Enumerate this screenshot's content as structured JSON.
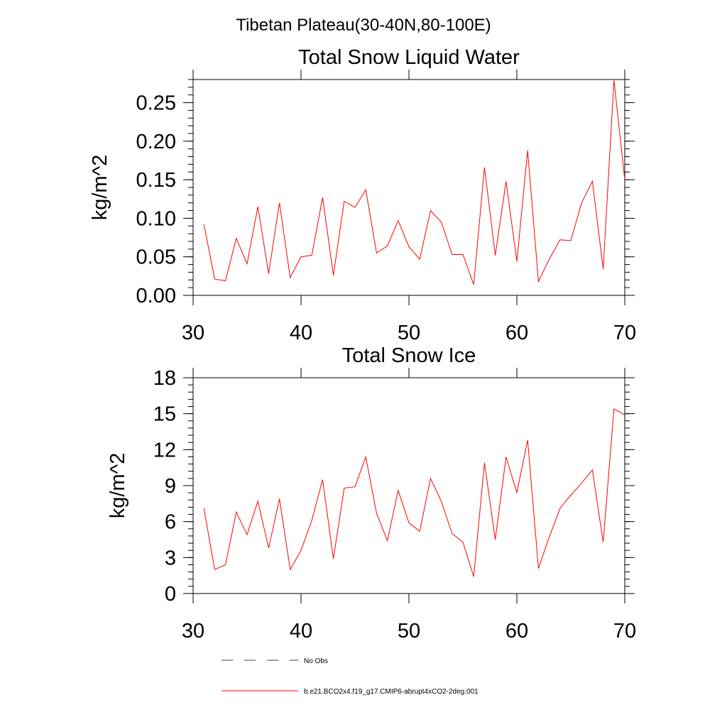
{
  "page_title": "Tibetan Plateau(30-40N,80-100E)",
  "colors": {
    "model_line": "#ff0000",
    "obs_line": "#3a3a7a",
    "axis": "#000000",
    "background": "#ffffff"
  },
  "chart_data": [
    {
      "type": "line",
      "title": "Total Snow Liquid Water",
      "xlabel": "",
      "ylabel": "kg/m^2",
      "xlim": [
        30,
        70
      ],
      "ylim": [
        0,
        0.28
      ],
      "x_ticks": [
        30,
        40,
        50,
        60,
        70
      ],
      "x_tick_labels": [
        "30",
        "40",
        "50",
        "60",
        "70"
      ],
      "y_ticks": [
        0,
        0.05,
        0.1,
        0.15,
        0.2,
        0.25
      ],
      "y_tick_labels": [
        "0.00",
        "0.05",
        "0.10",
        "0.15",
        "0.20",
        "0.25"
      ],
      "grid": false,
      "series": [
        {
          "name": "b.e21.BCO2x4.f19_g17.CMIP6-abrupt4xCO2-2deg.001",
          "color": "#ff0000",
          "x": [
            31,
            32,
            33,
            34,
            35,
            36,
            37,
            38,
            39,
            40,
            41,
            42,
            43,
            44,
            45,
            46,
            47,
            48,
            49,
            50,
            51,
            52,
            53,
            54,
            55,
            56,
            57,
            58,
            59,
            60,
            61,
            62,
            63,
            64,
            65,
            66,
            67,
            68,
            69,
            70
          ],
          "y": [
            0.092,
            0.021,
            0.019,
            0.074,
            0.041,
            0.115,
            0.028,
            0.12,
            0.023,
            0.05,
            0.052,
            0.127,
            0.026,
            0.122,
            0.114,
            0.137,
            0.055,
            0.064,
            0.097,
            0.063,
            0.047,
            0.11,
            0.095,
            0.053,
            0.053,
            0.014,
            0.166,
            0.052,
            0.148,
            0.044,
            0.188,
            0.018,
            0.047,
            0.072,
            0.071,
            0.12,
            0.148,
            0.034,
            0.279,
            0.15
          ]
        }
      ]
    },
    {
      "type": "line",
      "title": "Total Snow Ice",
      "xlabel": "",
      "ylabel": "kg/m^2",
      "xlim": [
        30,
        70
      ],
      "ylim": [
        0,
        18
      ],
      "x_ticks": [
        30,
        40,
        50,
        60,
        70
      ],
      "x_tick_labels": [
        "30",
        "40",
        "50",
        "60",
        "70"
      ],
      "y_ticks": [
        0,
        3,
        6,
        9,
        12,
        15,
        18
      ],
      "y_tick_labels": [
        "0",
        "3",
        "6",
        "9",
        "12",
        "15",
        "18"
      ],
      "grid": false,
      "series": [
        {
          "name": "b.e21.BCO2x4.f19_g17.CMIP6-abrupt4xCO2-2deg.001",
          "color": "#ff0000",
          "x": [
            31,
            32,
            33,
            34,
            35,
            36,
            37,
            38,
            39,
            40,
            41,
            42,
            43,
            44,
            45,
            46,
            47,
            48,
            49,
            50,
            51,
            52,
            53,
            54,
            55,
            56,
            57,
            58,
            59,
            60,
            61,
            62,
            63,
            64,
            65,
            66,
            67,
            68,
            69,
            70
          ],
          "y": [
            7.1,
            2.0,
            2.4,
            6.8,
            4.9,
            7.7,
            3.8,
            7.9,
            2.0,
            3.6,
            6.1,
            9.5,
            2.9,
            8.8,
            8.9,
            11.4,
            6.7,
            4.4,
            8.6,
            5.9,
            5.2,
            9.6,
            7.7,
            5.0,
            4.3,
            1.4,
            10.9,
            4.5,
            11.4,
            8.4,
            12.8,
            2.1,
            4.7,
            7.1,
            8.2,
            9.2,
            10.3,
            4.3,
            15.4,
            14.9
          ]
        }
      ]
    }
  ],
  "legend": {
    "placement": "bottom-center",
    "entries": [
      {
        "label": "No Obs",
        "style": "dashed",
        "color": "#3a3a7a"
      },
      {
        "label": "b.e21.BCO2x4.f19_g17.CMIP6-abrupt4xCO2-2deg.001",
        "style": "solid",
        "color": "#ff0000"
      }
    ]
  }
}
